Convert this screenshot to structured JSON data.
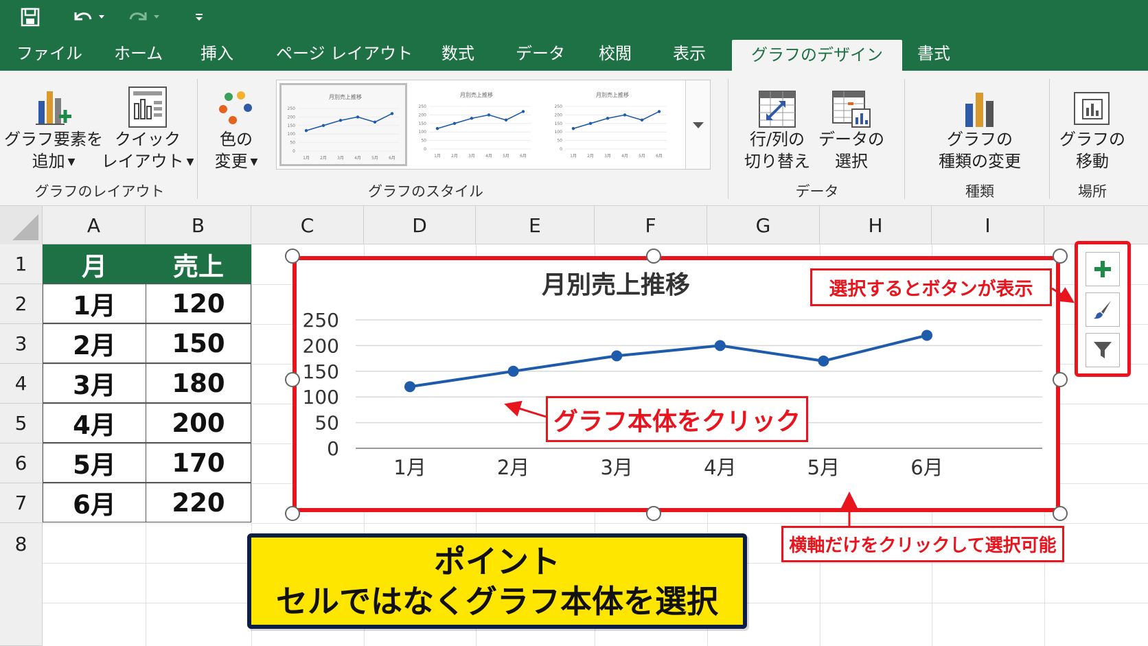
{
  "quick_access": {
    "save_icon": "save-icon",
    "undo_icon": "undo-icon",
    "redo_icon": "redo-icon",
    "customize_icon": "customize-icon"
  },
  "tabs": [
    {
      "label": "ファイル"
    },
    {
      "label": "ホーム"
    },
    {
      "label": "挿入"
    },
    {
      "label": "ページ レイアウト"
    },
    {
      "label": "数式"
    },
    {
      "label": "データ"
    },
    {
      "label": "校閲"
    },
    {
      "label": "表示"
    },
    {
      "label": "グラフのデザイン",
      "active": true
    },
    {
      "label": "書式"
    }
  ],
  "ribbon": {
    "add_element": {
      "line1": "グラフ要素を",
      "line2": "追加"
    },
    "quick_layout": {
      "line1": "クイック",
      "line2": "レイアウト"
    },
    "group_layout": "グラフのレイアウト",
    "change_colors": {
      "line1": "色の",
      "line2": "変更"
    },
    "group_styles": "グラフのスタイル",
    "thumb_title": "月別売上推移",
    "thumb_yticks": [
      "250",
      "200",
      "150",
      "100",
      "50",
      "0"
    ],
    "thumb_months": [
      "1月",
      "2月",
      "3月",
      "4月",
      "5月",
      "6月"
    ],
    "switch_row_col": {
      "line1": "行/列の",
      "line2": "切り替え"
    },
    "select_data": {
      "line1": "データの",
      "line2": "選択"
    },
    "group_data": "データ",
    "change_type": {
      "line1": "グラフの",
      "line2": "種類の変更"
    },
    "group_type": "種類",
    "move_chart": {
      "line1": "グラフの",
      "line2": "移動"
    },
    "group_location": "場所"
  },
  "sheet": {
    "columns": [
      "A",
      "B",
      "C",
      "D",
      "E",
      "F",
      "G",
      "H",
      "I"
    ],
    "rows": [
      "1",
      "2",
      "3",
      "4",
      "5",
      "6",
      "7",
      "8"
    ],
    "table": {
      "header": [
        "月",
        "売上"
      ],
      "rows": [
        [
          "1月",
          "120"
        ],
        [
          "2月",
          "150"
        ],
        [
          "3月",
          "180"
        ],
        [
          "4月",
          "200"
        ],
        [
          "5月",
          "170"
        ],
        [
          "6月",
          "220"
        ]
      ]
    }
  },
  "chart_data": {
    "type": "line",
    "title": "月別売上推移",
    "categories": [
      "1月",
      "2月",
      "3月",
      "4月",
      "5月",
      "6月"
    ],
    "series": [
      {
        "values": [
          120,
          150,
          180,
          200,
          170,
          220
        ],
        "color": "#1f5bab"
      }
    ],
    "yticks": [
      "250",
      "200",
      "150",
      "100",
      "50",
      "0"
    ],
    "ylim": [
      0,
      250
    ],
    "grid": true,
    "legend": "none"
  },
  "annotations": {
    "buttons_note": "選択するとボタンが表示",
    "click_chart": "グラフ本体をクリック",
    "axis_note": "横軸だけをクリックして選択可能",
    "point_line1": "ポイント",
    "point_line2": "セルではなくグラフ本体を選択",
    "accent_color": "#e8141e"
  },
  "side_buttons": {
    "add_icon": "plus-icon",
    "style_icon": "brush-icon",
    "filter_icon": "filter-icon"
  }
}
